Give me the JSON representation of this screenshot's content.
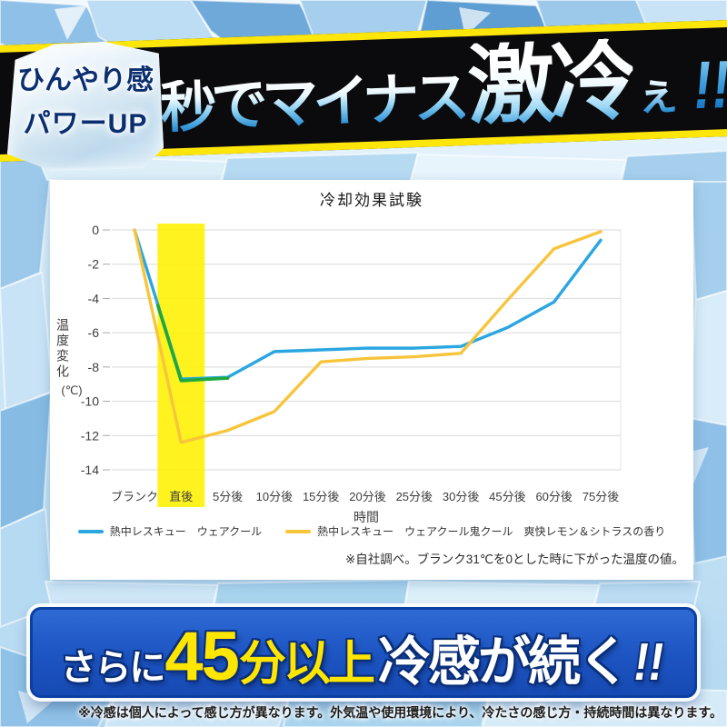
{
  "header": {
    "badge": {
      "line1": "ひんやり感",
      "line2": "パワーUP"
    },
    "headline": {
      "p1": "秒でマイナス",
      "p2": "激冷",
      "p3": "ぇ",
      "p4": "!!"
    }
  },
  "chart_data": {
    "type": "line",
    "title": "冷却効果試験",
    "xlabel": "時間",
    "ylabel": "温度変化",
    "ylabel_unit": "(℃)",
    "ylim": [
      -14,
      0
    ],
    "ytick_step": 2,
    "grid": true,
    "legend_position": "bottom",
    "categories": [
      "ブランク",
      "直後",
      "5分後",
      "10分後",
      "15分後",
      "20分後",
      "25分後",
      "30分後",
      "45分後",
      "60分後",
      "75分後"
    ],
    "series": [
      {
        "name": "熱中レスキュー　ウェアクール",
        "color": "#2BA6E0",
        "values": [
          0,
          -8.7,
          -8.6,
          -7.1,
          -7.0,
          -6.9,
          -6.9,
          -6.8,
          -5.7,
          -4.2,
          -0.6
        ]
      },
      {
        "name": "熱中レスキュー　ウェアクール鬼クール　爽快レモン＆シトラスの香り",
        "color": "#F7C53C",
        "values": [
          0,
          -12.4,
          -11.7,
          -10.6,
          -7.7,
          -7.5,
          -7.4,
          -7.2,
          -4.1,
          -1.1,
          -0.1
        ]
      }
    ],
    "emphasis_overlay": {
      "color": "#1FA83C",
      "points": [
        {
          "xi": 0.5,
          "v": -4.4
        },
        {
          "xi": 1,
          "v": -8.8
        },
        {
          "xi": 2,
          "v": -8.65
        }
      ]
    },
    "highlight_category": "直後",
    "highlight_color": "#FFF100",
    "footnote": "※自社調べ。ブランク31℃を0とした時に下がった温度の値。"
  },
  "banner": {
    "p1": "さらに",
    "p2": "45",
    "p3": "分以上",
    "p4": "冷感が続く",
    "p5": "!!"
  },
  "footer_note": "※冷感は個人によって感じ方が異なります。外気温や使用環境により、冷たさの感じ方・持続時間は異なります。",
  "colors": {
    "band_black": "#0B0B0D",
    "band_edge_yellow": "#FFE60A",
    "badge_text_navy": "#0B2E70",
    "banner_blue": "#1C54C2",
    "banner_yellow": "#FFE600",
    "line_blue": "#2BA6E0",
    "line_yellow": "#F7C53C",
    "line_green": "#1FA83C",
    "highlight_yellow": "#FFF100"
  }
}
